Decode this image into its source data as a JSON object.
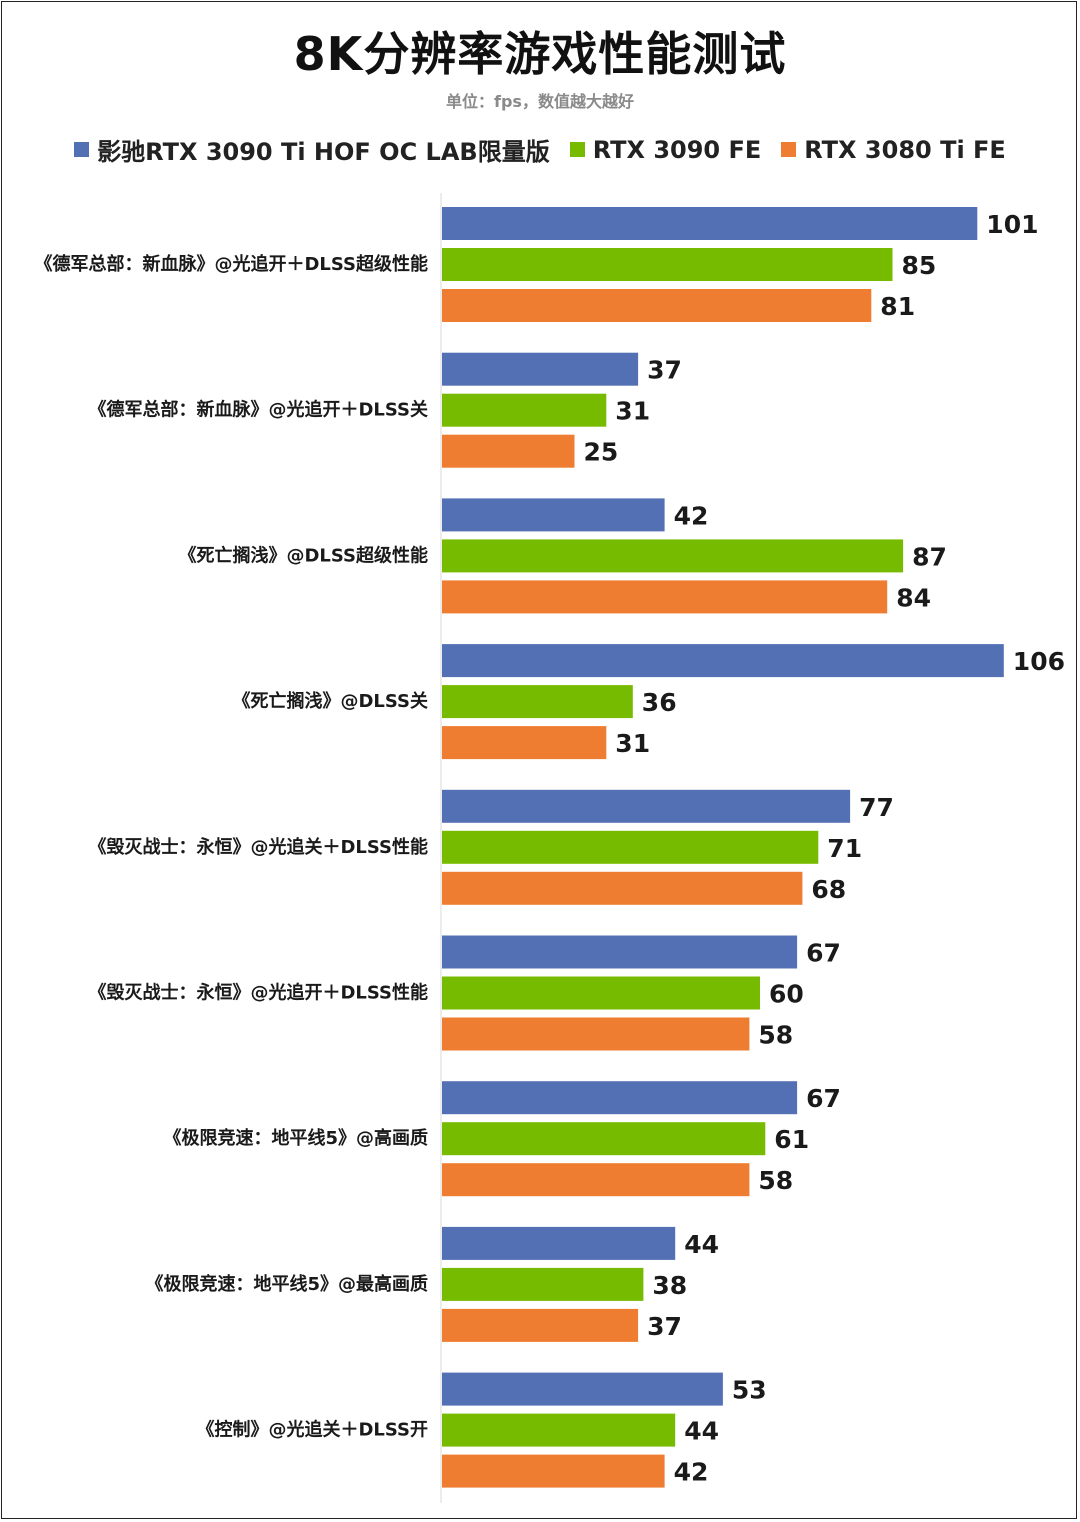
{
  "title": "8K分辨率游戏性能测试",
  "subtitle": "单位：fps，数值越大越好",
  "legend": [
    {
      "label": "影驰RTX 3090 Ti HOF OC LAB限量版",
      "color": "#5470b4"
    },
    {
      "label": "RTX 3090 FE",
      "color": "#77bb00"
    },
    {
      "label": "RTX 3080 Ti FE",
      "color": "#ee7d31"
    }
  ],
  "chart_data": {
    "type": "bar",
    "orientation": "horizontal",
    "title": "8K分辨率游戏性能测试",
    "subtitle": "单位：fps，数值越大越好",
    "xlabel": "",
    "ylabel": "",
    "xlim": [
      0,
      110
    ],
    "grid": false,
    "legend_position": "top",
    "categories": [
      "《德军总部：新血脉》@光追开＋DLSS超级性能",
      "《德军总部：新血脉》@光追开＋DLSS关",
      "《死亡搁浅》@DLSS超级性能",
      "《死亡搁浅》@DLSS关",
      "《毁灭战士：永恒》@光追关＋DLSS性能",
      "《毁灭战士：永恒》@光追开＋DLSS性能",
      "《极限竞速：地平线5》@高画质",
      "《极限竞速：地平线5》@最高画质",
      "《控制》@光追关＋DLSS开"
    ],
    "series": [
      {
        "name": "影驰RTX 3090 Ti HOF OC LAB限量版",
        "color": "#5470b4",
        "values": [
          101,
          37,
          42,
          106,
          77,
          67,
          67,
          44,
          53
        ]
      },
      {
        "name": "RTX 3090 FE",
        "color": "#77bb00",
        "values": [
          85,
          31,
          87,
          36,
          71,
          60,
          61,
          38,
          44
        ]
      },
      {
        "name": "RTX 3080 Ti FE",
        "color": "#ee7d31",
        "values": [
          81,
          25,
          84,
          31,
          68,
          58,
          58,
          37,
          42
        ]
      }
    ]
  }
}
